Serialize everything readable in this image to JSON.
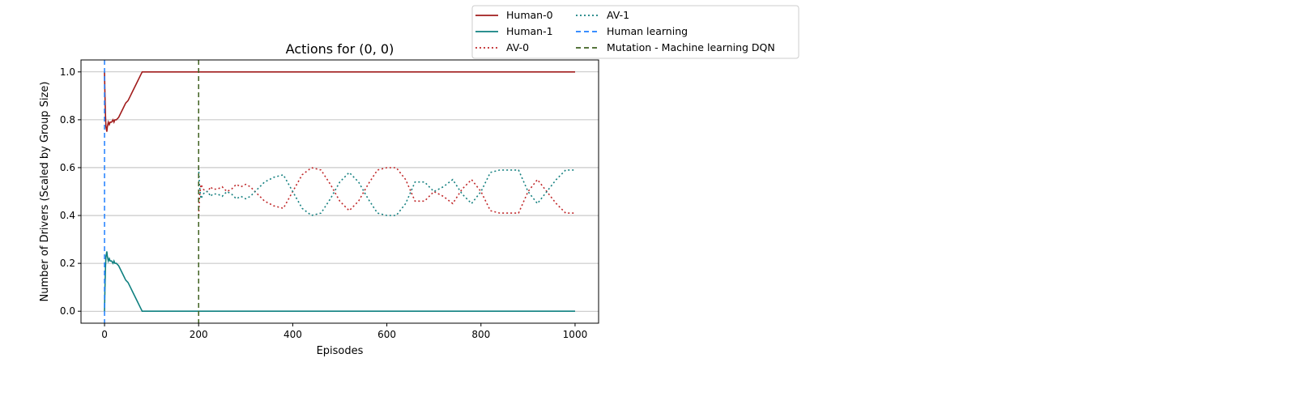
{
  "chart_data": {
    "type": "line",
    "title": "Actions for (0, 0)",
    "xlabel": "Episodes",
    "ylabel": "Number of Drivers (Scaled by Group Size)",
    "xlim": [
      -50,
      1050
    ],
    "ylim": [
      -0.05,
      1.05
    ],
    "xticks": [
      0,
      200,
      400,
      600,
      800,
      1000
    ],
    "xtick_labels": [
      "0",
      "200",
      "400",
      "600",
      "800",
      "1000"
    ],
    "yticks": [
      0.0,
      0.2,
      0.4,
      0.6,
      0.8,
      1.0
    ],
    "ytick_labels": [
      "0.0",
      "0.2",
      "0.4",
      "0.6",
      "0.8",
      "1.0"
    ],
    "grid": "horizontal",
    "legend_position": "top-right-outside",
    "series": [
      {
        "name": "Human-0",
        "color": "#a11c1c",
        "style": "solid",
        "x": [
          0,
          1,
          2,
          3,
          4,
          5,
          6,
          8,
          10,
          12,
          15,
          18,
          20,
          22,
          25,
          30,
          35,
          40,
          45,
          50,
          55,
          60,
          65,
          70,
          75,
          80,
          85,
          90,
          100,
          150,
          200,
          300,
          400,
          500,
          600,
          700,
          800,
          900,
          1000
        ],
        "y": [
          1.0,
          0.9,
          0.82,
          0.77,
          0.76,
          0.75,
          0.77,
          0.79,
          0.78,
          0.79,
          0.79,
          0.8,
          0.79,
          0.8,
          0.8,
          0.81,
          0.83,
          0.85,
          0.87,
          0.88,
          0.9,
          0.92,
          0.94,
          0.96,
          0.98,
          1.0,
          1.0,
          1.0,
          1.0,
          1.0,
          1.0,
          1.0,
          1.0,
          1.0,
          1.0,
          1.0,
          1.0,
          1.0,
          1.0
        ]
      },
      {
        "name": "Human-1",
        "color": "#0f8080",
        "style": "solid",
        "x": [
          0,
          1,
          2,
          3,
          4,
          5,
          6,
          8,
          10,
          12,
          15,
          18,
          20,
          22,
          25,
          30,
          35,
          40,
          45,
          50,
          55,
          60,
          65,
          70,
          75,
          80,
          85,
          90,
          100,
          150,
          200,
          300,
          400,
          500,
          600,
          700,
          800,
          900,
          1000
        ],
        "y": [
          0.0,
          0.1,
          0.18,
          0.23,
          0.24,
          0.25,
          0.23,
          0.21,
          0.22,
          0.21,
          0.21,
          0.2,
          0.21,
          0.2,
          0.2,
          0.19,
          0.17,
          0.15,
          0.13,
          0.12,
          0.1,
          0.08,
          0.06,
          0.04,
          0.02,
          0.0,
          0.0,
          0.0,
          0.0,
          0.0,
          0.0,
          0.0,
          0.0,
          0.0,
          0.0,
          0.0,
          0.0,
          0.0,
          0.0
        ]
      },
      {
        "name": "AV-0",
        "color": "#c0282a",
        "style": "dotted",
        "x": [
          200,
          202,
          205,
          210,
          215,
          220,
          225,
          230,
          240,
          250,
          260,
          270,
          280,
          290,
          300,
          310,
          320,
          340,
          360,
          380,
          400,
          420,
          440,
          460,
          480,
          500,
          520,
          540,
          560,
          580,
          600,
          620,
          640,
          660,
          680,
          700,
          720,
          740,
          760,
          780,
          800,
          820,
          840,
          860,
          880,
          900,
          920,
          940,
          960,
          980,
          1000
        ],
        "y": [
          0.4,
          0.48,
          0.53,
          0.51,
          0.5,
          0.5,
          0.52,
          0.51,
          0.51,
          0.52,
          0.5,
          0.51,
          0.53,
          0.52,
          0.53,
          0.52,
          0.5,
          0.46,
          0.44,
          0.43,
          0.5,
          0.57,
          0.6,
          0.59,
          0.53,
          0.46,
          0.42,
          0.46,
          0.53,
          0.59,
          0.6,
          0.6,
          0.55,
          0.46,
          0.46,
          0.5,
          0.48,
          0.45,
          0.51,
          0.55,
          0.5,
          0.42,
          0.41,
          0.41,
          0.41,
          0.5,
          0.55,
          0.5,
          0.45,
          0.41,
          0.41
        ]
      },
      {
        "name": "AV-1",
        "color": "#158080",
        "style": "dotted",
        "x": [
          200,
          202,
          205,
          210,
          215,
          220,
          225,
          230,
          240,
          250,
          260,
          270,
          280,
          290,
          300,
          310,
          320,
          340,
          360,
          380,
          400,
          420,
          440,
          460,
          480,
          500,
          520,
          540,
          560,
          580,
          600,
          620,
          640,
          660,
          680,
          700,
          720,
          740,
          760,
          780,
          800,
          820,
          840,
          860,
          880,
          900,
          920,
          940,
          960,
          980,
          1000
        ],
        "y": [
          0.6,
          0.52,
          0.47,
          0.49,
          0.5,
          0.5,
          0.48,
          0.49,
          0.49,
          0.48,
          0.5,
          0.49,
          0.47,
          0.48,
          0.47,
          0.48,
          0.5,
          0.54,
          0.56,
          0.57,
          0.5,
          0.43,
          0.4,
          0.41,
          0.47,
          0.54,
          0.58,
          0.54,
          0.47,
          0.41,
          0.4,
          0.4,
          0.45,
          0.54,
          0.54,
          0.5,
          0.52,
          0.55,
          0.49,
          0.45,
          0.5,
          0.58,
          0.59,
          0.59,
          0.59,
          0.5,
          0.45,
          0.5,
          0.55,
          0.59,
          0.59
        ]
      }
    ],
    "vlines": [
      {
        "name": "Human learning",
        "x": 0,
        "color": "#1f7fff",
        "style": "dashed"
      },
      {
        "name": "Mutation - Machine learning DQN",
        "x": 200,
        "color": "#3f6020",
        "style": "dashed"
      }
    ]
  }
}
